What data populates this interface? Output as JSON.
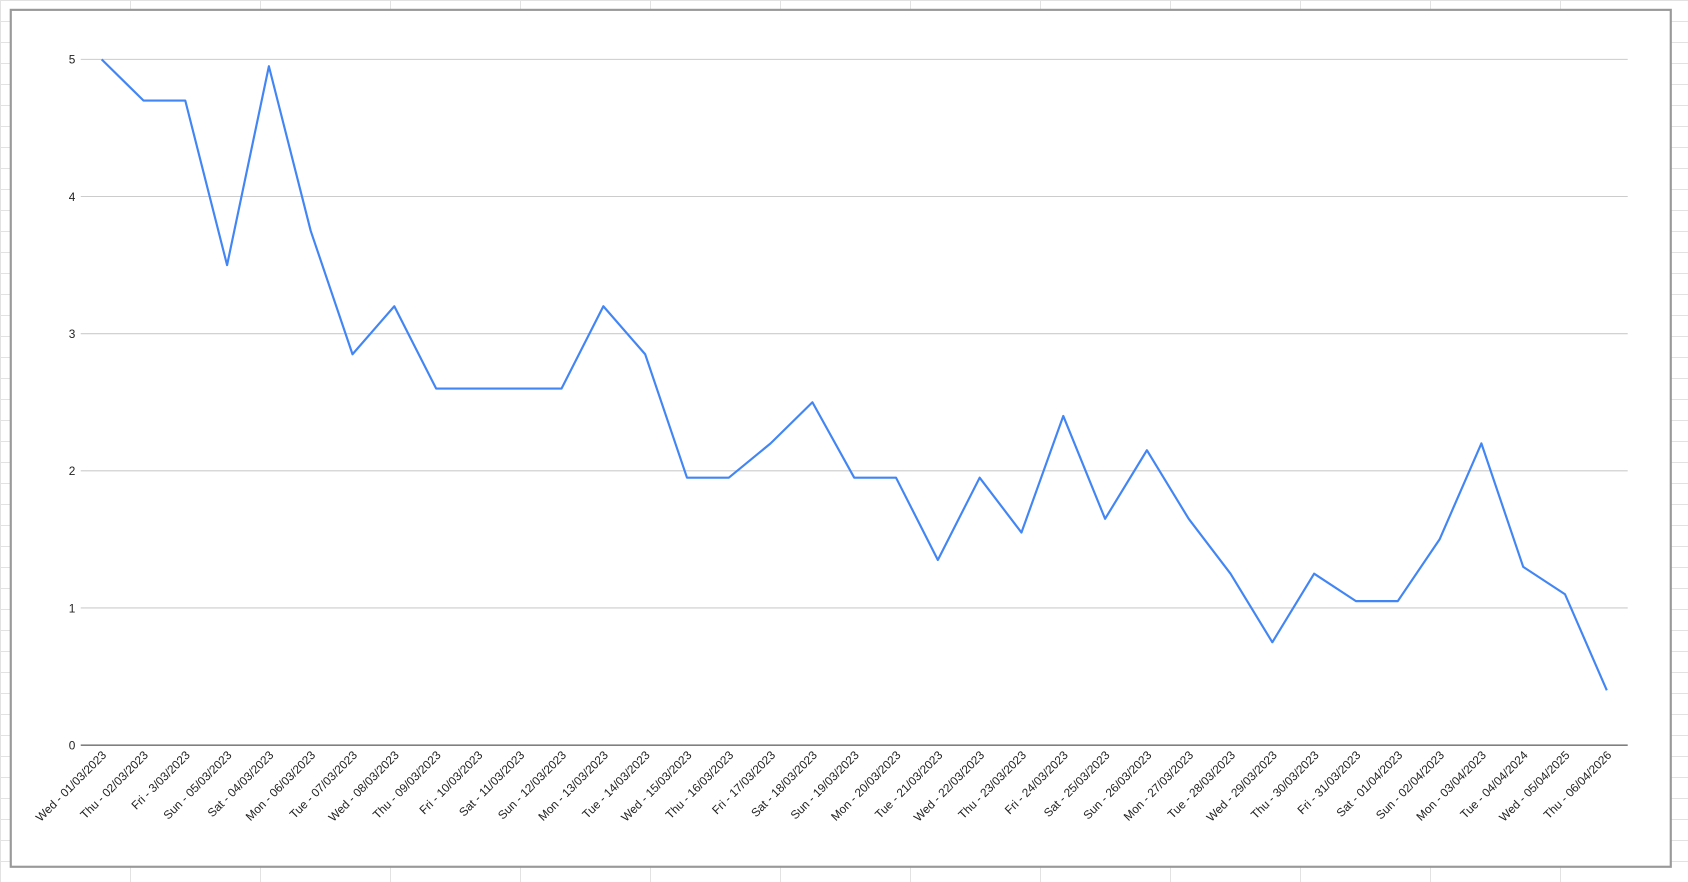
{
  "chart_data": {
    "type": "line",
    "categories": [
      "Wed - 01/03/2023",
      "Thu - 02/03/2023",
      "Fri - 3/03/2023",
      "Sun - 05/03/2023",
      "Sat - 04/03/2023",
      "Mon - 06/03/2023",
      "Tue - 07/03/2023",
      "Wed - 08/03/2023",
      "Thu - 09/03/2023",
      "Fri - 10/03/2023",
      "Sat - 11/03/2023",
      "Sun - 12/03/2023",
      "Mon - 13/03/2023",
      "Tue - 14/03/2023",
      "Wed - 15/03/2023",
      "Thu - 16/03/2023",
      "Fri - 17/03/2023",
      "Sat - 18/03/2023",
      "Sun - 19/03/2023",
      "Mon - 20/03/2023",
      "Tue - 21/03/2023",
      "Wed - 22/03/2023",
      "Thu - 23/03/2023",
      "Fri - 24/03/2023",
      "Sat - 25/03/2023",
      "Sun - 26/03/2023",
      "Mon - 27/03/2023",
      "Tue - 28/03/2023",
      "Wed - 29/03/2023",
      "Thu - 30/03/2023",
      "Fri - 31/03/2023",
      "Sat - 01/04/2023",
      "Sun - 02/04/2023",
      "Mon - 03/04/2023",
      "Tue - 04/04/2024",
      "Wed - 05/04/2025",
      "Thu - 06/04/2026"
    ],
    "values": [
      5,
      4.7,
      4.7,
      3.5,
      4.95,
      3.75,
      2.85,
      3.2,
      2.6,
      2.6,
      2.6,
      2.6,
      3.2,
      2.85,
      1.95,
      1.95,
      2.2,
      2.5,
      1.95,
      1.95,
      1.35,
      1.95,
      1.55,
      2.4,
      1.65,
      2.15,
      1.65,
      1.25,
      0.75,
      1.25,
      1.05,
      1.05,
      1.5,
      2.2,
      1.3,
      1.1,
      0.4
    ],
    "color": "#4285f4",
    "ylim": [
      0,
      5
    ],
    "yticks": [
      0,
      1,
      2,
      3,
      4,
      5
    ],
    "grid": true
  }
}
